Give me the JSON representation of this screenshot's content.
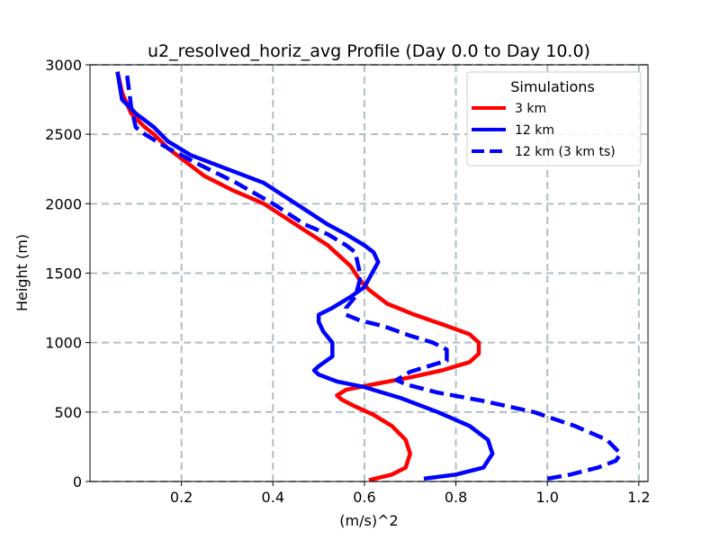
{
  "chart_data": {
    "type": "line",
    "title": "u2_resolved_horiz_avg Profile (Day 0.0 to Day 10.0)",
    "xlabel": "(m/s)^2",
    "ylabel": "Height (m)",
    "xlim": [
      0.0,
      1.22
    ],
    "ylim": [
      0,
      3000
    ],
    "xticks": [
      "0.2",
      "0.4",
      "0.6",
      "0.8",
      "1.0",
      "1.2"
    ],
    "xtick_values": [
      0.2,
      0.4,
      0.6,
      0.8,
      1.0,
      1.2
    ],
    "yticks": [
      "0",
      "500",
      "1000",
      "1500",
      "2000",
      "2500",
      "3000"
    ],
    "ytick_values": [
      0,
      500,
      1000,
      1500,
      2000,
      2500,
      3000
    ],
    "grid": true,
    "legend": {
      "title": "Simulations",
      "placement": "upper right"
    },
    "series": [
      {
        "name": "3 km",
        "color": "#ff0000",
        "dash": "solid",
        "x": [
          0.61,
          0.66,
          0.69,
          0.7,
          0.69,
          0.66,
          0.62,
          0.58,
          0.55,
          0.54,
          0.56,
          0.62,
          0.7,
          0.77,
          0.83,
          0.85,
          0.85,
          0.83,
          0.78,
          0.71,
          0.65,
          0.61,
          0.59,
          0.57,
          0.52,
          0.45,
          0.38,
          0.31,
          0.25,
          0.21,
          0.17,
          0.14,
          0.12,
          0.09,
          0.07,
          0.06
        ],
        "y": [
          10,
          50,
          100,
          200,
          300,
          400,
          480,
          540,
          590,
          620,
          660,
          700,
          750,
          800,
          860,
          920,
          1000,
          1060,
          1120,
          1200,
          1280,
          1380,
          1450,
          1550,
          1700,
          1850,
          2000,
          2100,
          2200,
          2300,
          2400,
          2500,
          2550,
          2650,
          2800,
          2950
        ]
      },
      {
        "name": "12 km",
        "color": "#0000ff",
        "dash": "solid",
        "x": [
          0.73,
          0.8,
          0.86,
          0.88,
          0.87,
          0.83,
          0.76,
          0.68,
          0.6,
          0.54,
          0.5,
          0.49,
          0.5,
          0.53,
          0.53,
          0.51,
          0.5,
          0.5,
          0.53,
          0.57,
          0.6,
          0.63,
          0.62,
          0.6,
          0.56,
          0.52,
          0.45,
          0.38,
          0.3,
          0.22,
          0.17,
          0.14,
          0.12,
          0.1,
          0.07,
          0.06
        ],
        "y": [
          20,
          50,
          100,
          200,
          300,
          400,
          500,
          600,
          680,
          720,
          770,
          800,
          830,
          900,
          1000,
          1080,
          1150,
          1200,
          1250,
          1330,
          1400,
          1580,
          1650,
          1700,
          1780,
          1850,
          2000,
          2150,
          2250,
          2350,
          2450,
          2550,
          2600,
          2650,
          2750,
          2950
        ]
      },
      {
        "name": "12 km (3 km ts)",
        "color": "#0000ff",
        "dash": "dashed",
        "x": [
          1.0,
          1.05,
          1.11,
          1.15,
          1.16,
          1.13,
          1.06,
          0.97,
          0.86,
          0.76,
          0.69,
          0.67,
          0.68,
          0.7,
          0.73,
          0.76,
          0.78,
          0.78,
          0.75,
          0.7,
          0.64,
          0.59,
          0.56,
          0.56,
          0.58,
          0.59,
          0.59,
          0.58,
          0.56,
          0.52,
          0.47,
          0.4,
          0.32,
          0.24,
          0.17,
          0.12,
          0.1,
          0.09,
          0.08
        ],
        "y": [
          20,
          50,
          100,
          150,
          200,
          300,
          400,
          500,
          580,
          640,
          700,
          730,
          750,
          790,
          820,
          850,
          870,
          950,
          1000,
          1050,
          1120,
          1160,
          1200,
          1250,
          1330,
          1450,
          1500,
          1650,
          1700,
          1780,
          1850,
          2000,
          2150,
          2280,
          2400,
          2500,
          2550,
          2700,
          2950
        ]
      }
    ]
  }
}
